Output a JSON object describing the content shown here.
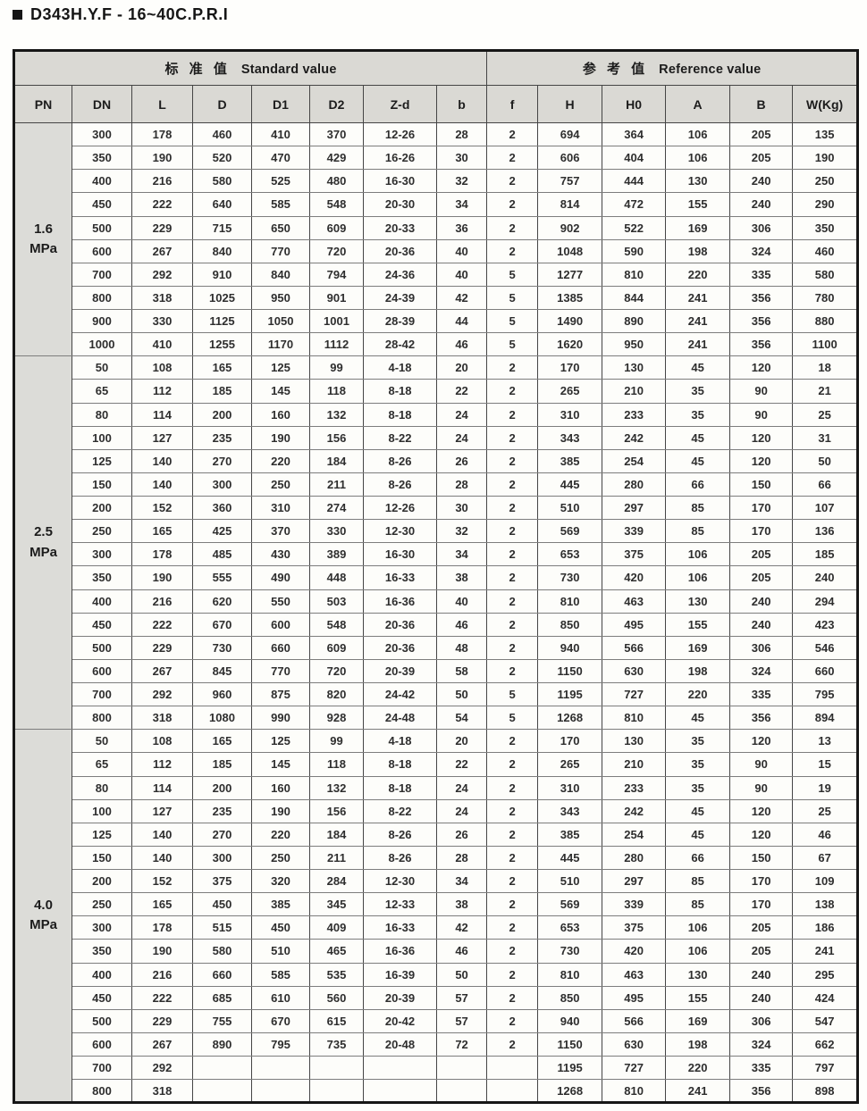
{
  "title": "D343H.Y.F - 16~40C.P.R.I",
  "colors": {
    "header_bg": "#dad9d4",
    "pn_column_bg": "#dcdcd8",
    "outer_border": "#161616",
    "grid_line": "#454545",
    "text": "#2e2e2e"
  },
  "table": {
    "group_headers": [
      {
        "zh": "标 准 值",
        "en": "Standard value"
      },
      {
        "zh": "参 考 值",
        "en": "Reference value"
      }
    ],
    "columns": [
      "PN",
      "DN",
      "L",
      "D",
      "D1",
      "D2",
      "Z-d",
      "b",
      "f",
      "H",
      "H0",
      "A",
      "B",
      "W(Kg)"
    ],
    "sections": [
      {
        "pn_value": "1.6",
        "pn_unit": "MPa",
        "rows": [
          [
            "300",
            "178",
            "460",
            "410",
            "370",
            "12-26",
            "28",
            "2",
            "694",
            "364",
            "106",
            "205",
            "135"
          ],
          [
            "350",
            "190",
            "520",
            "470",
            "429",
            "16-26",
            "30",
            "2",
            "606",
            "404",
            "106",
            "205",
            "190"
          ],
          [
            "400",
            "216",
            "580",
            "525",
            "480",
            "16-30",
            "32",
            "2",
            "757",
            "444",
            "130",
            "240",
            "250"
          ],
          [
            "450",
            "222",
            "640",
            "585",
            "548",
            "20-30",
            "34",
            "2",
            "814",
            "472",
            "155",
            "240",
            "290"
          ],
          [
            "500",
            "229",
            "715",
            "650",
            "609",
            "20-33",
            "36",
            "2",
            "902",
            "522",
            "169",
            "306",
            "350"
          ],
          [
            "600",
            "267",
            "840",
            "770",
            "720",
            "20-36",
            "40",
            "2",
            "1048",
            "590",
            "198",
            "324",
            "460"
          ],
          [
            "700",
            "292",
            "910",
            "840",
            "794",
            "24-36",
            "40",
            "5",
            "1277",
            "810",
            "220",
            "335",
            "580"
          ],
          [
            "800",
            "318",
            "1025",
            "950",
            "901",
            "24-39",
            "42",
            "5",
            "1385",
            "844",
            "241",
            "356",
            "780"
          ],
          [
            "900",
            "330",
            "1125",
            "1050",
            "1001",
            "28-39",
            "44",
            "5",
            "1490",
            "890",
            "241",
            "356",
            "880"
          ],
          [
            "1000",
            "410",
            "1255",
            "1170",
            "1112",
            "28-42",
            "46",
            "5",
            "1620",
            "950",
            "241",
            "356",
            "1100"
          ]
        ]
      },
      {
        "pn_value": "2.5",
        "pn_unit": "MPa",
        "rows": [
          [
            "50",
            "108",
            "165",
            "125",
            "99",
            "4-18",
            "20",
            "2",
            "170",
            "130",
            "45",
            "120",
            "18"
          ],
          [
            "65",
            "112",
            "185",
            "145",
            "118",
            "8-18",
            "22",
            "2",
            "265",
            "210",
            "35",
            "90",
            "21"
          ],
          [
            "80",
            "114",
            "200",
            "160",
            "132",
            "8-18",
            "24",
            "2",
            "310",
            "233",
            "35",
            "90",
            "25"
          ],
          [
            "100",
            "127",
            "235",
            "190",
            "156",
            "8-22",
            "24",
            "2",
            "343",
            "242",
            "45",
            "120",
            "31"
          ],
          [
            "125",
            "140",
            "270",
            "220",
            "184",
            "8-26",
            "26",
            "2",
            "385",
            "254",
            "45",
            "120",
            "50"
          ],
          [
            "150",
            "140",
            "300",
            "250",
            "211",
            "8-26",
            "28",
            "2",
            "445",
            "280",
            "66",
            "150",
            "66"
          ],
          [
            "200",
            "152",
            "360",
            "310",
            "274",
            "12-26",
            "30",
            "2",
            "510",
            "297",
            "85",
            "170",
            "107"
          ],
          [
            "250",
            "165",
            "425",
            "370",
            "330",
            "12-30",
            "32",
            "2",
            "569",
            "339",
            "85",
            "170",
            "136"
          ],
          [
            "300",
            "178",
            "485",
            "430",
            "389",
            "16-30",
            "34",
            "2",
            "653",
            "375",
            "106",
            "205",
            "185"
          ],
          [
            "350",
            "190",
            "555",
            "490",
            "448",
            "16-33",
            "38",
            "2",
            "730",
            "420",
            "106",
            "205",
            "240"
          ],
          [
            "400",
            "216",
            "620",
            "550",
            "503",
            "16-36",
            "40",
            "2",
            "810",
            "463",
            "130",
            "240",
            "294"
          ],
          [
            "450",
            "222",
            "670",
            "600",
            "548",
            "20-36",
            "46",
            "2",
            "850",
            "495",
            "155",
            "240",
            "423"
          ],
          [
            "500",
            "229",
            "730",
            "660",
            "609",
            "20-36",
            "48",
            "2",
            "940",
            "566",
            "169",
            "306",
            "546"
          ],
          [
            "600",
            "267",
            "845",
            "770",
            "720",
            "20-39",
            "58",
            "2",
            "1150",
            "630",
            "198",
            "324",
            "660"
          ],
          [
            "700",
            "292",
            "960",
            "875",
            "820",
            "24-42",
            "50",
            "5",
            "1195",
            "727",
            "220",
            "335",
            "795"
          ],
          [
            "800",
            "318",
            "1080",
            "990",
            "928",
            "24-48",
            "54",
            "5",
            "1268",
            "810",
            "45",
            "356",
            "894"
          ]
        ]
      },
      {
        "pn_value": "4.0",
        "pn_unit": "MPa",
        "rows": [
          [
            "50",
            "108",
            "165",
            "125",
            "99",
            "4-18",
            "20",
            "2",
            "170",
            "130",
            "35",
            "120",
            "13"
          ],
          [
            "65",
            "112",
            "185",
            "145",
            "118",
            "8-18",
            "22",
            "2",
            "265",
            "210",
            "35",
            "90",
            "15"
          ],
          [
            "80",
            "114",
            "200",
            "160",
            "132",
            "8-18",
            "24",
            "2",
            "310",
            "233",
            "35",
            "90",
            "19"
          ],
          [
            "100",
            "127",
            "235",
            "190",
            "156",
            "8-22",
            "24",
            "2",
            "343",
            "242",
            "45",
            "120",
            "25"
          ],
          [
            "125",
            "140",
            "270",
            "220",
            "184",
            "8-26",
            "26",
            "2",
            "385",
            "254",
            "45",
            "120",
            "46"
          ],
          [
            "150",
            "140",
            "300",
            "250",
            "211",
            "8-26",
            "28",
            "2",
            "445",
            "280",
            "66",
            "150",
            "67"
          ],
          [
            "200",
            "152",
            "375",
            "320",
            "284",
            "12-30",
            "34",
            "2",
            "510",
            "297",
            "85",
            "170",
            "109"
          ],
          [
            "250",
            "165",
            "450",
            "385",
            "345",
            "12-33",
            "38",
            "2",
            "569",
            "339",
            "85",
            "170",
            "138"
          ],
          [
            "300",
            "178",
            "515",
            "450",
            "409",
            "16-33",
            "42",
            "2",
            "653",
            "375",
            "106",
            "205",
            "186"
          ],
          [
            "350",
            "190",
            "580",
            "510",
            "465",
            "16-36",
            "46",
            "2",
            "730",
            "420",
            "106",
            "205",
            "241"
          ],
          [
            "400",
            "216",
            "660",
            "585",
            "535",
            "16-39",
            "50",
            "2",
            "810",
            "463",
            "130",
            "240",
            "295"
          ],
          [
            "450",
            "222",
            "685",
            "610",
            "560",
            "20-39",
            "57",
            "2",
            "850",
            "495",
            "155",
            "240",
            "424"
          ],
          [
            "500",
            "229",
            "755",
            "670",
            "615",
            "20-42",
            "57",
            "2",
            "940",
            "566",
            "169",
            "306",
            "547"
          ],
          [
            "600",
            "267",
            "890",
            "795",
            "735",
            "20-48",
            "72",
            "2",
            "1150",
            "630",
            "198",
            "324",
            "662"
          ],
          [
            "700",
            "292",
            "",
            "",
            "",
            "",
            "",
            "",
            "1195",
            "727",
            "220",
            "335",
            "797"
          ],
          [
            "800",
            "318",
            "",
            "",
            "",
            "",
            "",
            "",
            "1268",
            "810",
            "241",
            "356",
            "898"
          ]
        ]
      }
    ]
  }
}
